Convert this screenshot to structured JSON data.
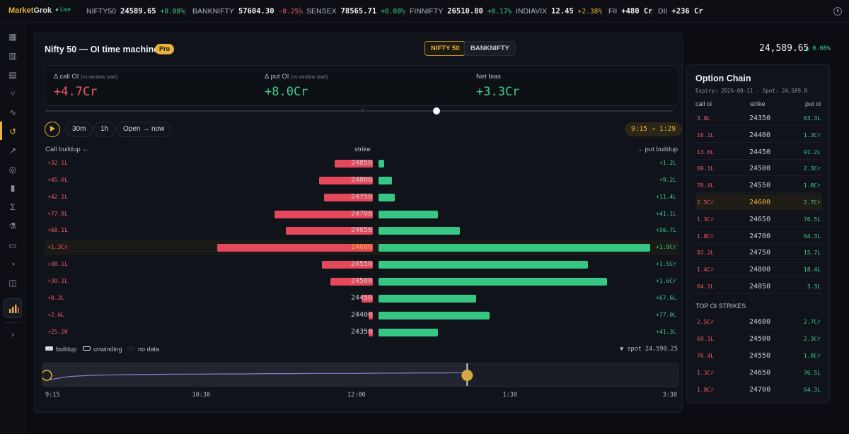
{
  "brand": {
    "name_a": "Market",
    "name_b": "Grok",
    "live": "● Live"
  },
  "ticker": [
    {
      "name": "NIFTY50",
      "value": "24589.65",
      "change": "+0.08%",
      "dir": "up"
    },
    {
      "name": "BANKNIFTY",
      "value": "57604.30",
      "change": "-0.25%",
      "dir": "down"
    },
    {
      "name": "SENSEX",
      "value": "78565.71",
      "change": "+0.08%",
      "dir": "up"
    },
    {
      "name": "FINNIFTY",
      "value": "26510.80",
      "change": "+0.17%",
      "dir": "up"
    },
    {
      "name": "INDIAVIX",
      "value": "12.45",
      "change": "+2.38%",
      "dir": "warn"
    },
    {
      "name": "FII",
      "value": "+480 Cr",
      "change": "",
      "dir": "up"
    },
    {
      "name": "DII",
      "value": "+236 Cr",
      "change": "",
      "dir": "up"
    }
  ],
  "header": {
    "title": "Nifty 50 — OI time machine",
    "badge": "Pro",
    "index_tabs": [
      "NIFTY 50",
      "BANKNIFTY"
    ],
    "price": "24,589.65",
    "price_change": "▲ 0.08%"
  },
  "stats": [
    {
      "label": "Δ call OI",
      "hint": "(vs window start)",
      "value": "+4.7Cr",
      "dir": "down"
    },
    {
      "label": "Δ put OI",
      "hint": "(vs window start)",
      "value": "+8.0Cr",
      "dir": "up"
    },
    {
      "label": "Net bias",
      "hint": "",
      "value": "+3.3Cr",
      "dir": "up"
    }
  ],
  "controls": {
    "windows": [
      "30m",
      "1h",
      "Open → now"
    ],
    "time_range": "9:15 → 1:29",
    "scrub_position": 0.62
  },
  "columns": {
    "left": "Call buildup ←",
    "mid": "strike",
    "right": "→ put buildup"
  },
  "oi_rows": [
    {
      "strike": "24850",
      "call": "+32.1L",
      "put": "+1.2L",
      "call_frac": 0.17,
      "put_frac": 0.02
    },
    {
      "strike": "24800",
      "call": "+45.0L",
      "put": "+9.2L",
      "call_frac": 0.24,
      "put_frac": 0.05
    },
    {
      "strike": "24750",
      "call": "+42.1L",
      "put": "+11.4L",
      "call_frac": 0.22,
      "put_frac": 0.06
    },
    {
      "strike": "24700",
      "call": "+77.8L",
      "put": "+41.1L",
      "call_frac": 0.44,
      "put_frac": 0.22
    },
    {
      "strike": "24650",
      "call": "+68.1L",
      "put": "+56.7L",
      "call_frac": 0.39,
      "put_frac": 0.3
    },
    {
      "strike": "24600",
      "call": "+1.3Cr",
      "put": "+1.9Cr",
      "call_frac": 0.7,
      "put_frac": 1.0,
      "highlight": true
    },
    {
      "strike": "24550",
      "call": "+38.1L",
      "put": "+1.5Cr",
      "call_frac": 0.23,
      "put_frac": 0.77
    },
    {
      "strike": "24500",
      "call": "+30.1L",
      "put": "+1.6Cr",
      "call_frac": 0.19,
      "put_frac": 0.84
    },
    {
      "strike": "24450",
      "call": "+8.3L",
      "put": "+67.6L",
      "call_frac": 0.05,
      "put_frac": 0.36
    },
    {
      "strike": "24400",
      "call": "+2.6L",
      "put": "+77.0L",
      "call_frac": 0.02,
      "put_frac": 0.41
    },
    {
      "strike": "24350",
      "call": "+25.2K",
      "put": "+41.3L",
      "call_frac": 0.02,
      "put_frac": 0.22
    }
  ],
  "legend": {
    "buildup": "buildup",
    "unwinding": "unwinding",
    "nodata": "no data",
    "spot": "▼ spot 24,590.25"
  },
  "timeline": {
    "labels": [
      "9:15",
      "10:30",
      "12:00",
      "1:30",
      "3:30"
    ],
    "progress": 0.667,
    "series": [
      0.3,
      0.45,
      0.5,
      0.52,
      0.53,
      0.54,
      0.55,
      0.55,
      0.56,
      0.56,
      0.57,
      0.57,
      0.58,
      0.58,
      0.58,
      0.59,
      0.59,
      0.6,
      0.6,
      0.61
    ]
  },
  "chain": {
    "title": "Option Chain",
    "subtitle": "Expiry: 2026-08-11 · Spot: 24,589.8",
    "headers": [
      "call oi",
      "strike",
      "put oi"
    ],
    "rows": [
      {
        "call": "3.8L",
        "strike": "24350",
        "put": "63.3L"
      },
      {
        "call": "16.1L",
        "strike": "24400",
        "put": "1.3Cr"
      },
      {
        "call": "13.6L",
        "strike": "24450",
        "put": "91.2L"
      },
      {
        "call": "69.1L",
        "strike": "24500",
        "put": "2.3Cr"
      },
      {
        "call": "76.4L",
        "strike": "24550",
        "put": "1.8Cr"
      },
      {
        "call": "2.5Cr",
        "strike": "24600",
        "put": "2.7Cr",
        "highlight": true
      },
      {
        "call": "1.3Cr",
        "strike": "24650",
        "put": "76.5L"
      },
      {
        "call": "1.8Cr",
        "strike": "24700",
        "put": "64.3L"
      },
      {
        "call": "82.2L",
        "strike": "24750",
        "put": "15.7L"
      },
      {
        "call": "1.4Cr",
        "strike": "24800",
        "put": "18.4L"
      },
      {
        "call": "64.1L",
        "strike": "24850",
        "put": "3.3L"
      }
    ],
    "top_title": "TOP OI STRIKES",
    "top_rows": [
      {
        "call": "2.5Cr",
        "strike": "24600",
        "put": "2.7Cr"
      },
      {
        "call": "69.1L",
        "strike": "24500",
        "put": "2.3Cr"
      },
      {
        "call": "76.4L",
        "strike": "24550",
        "put": "1.8Cr"
      },
      {
        "call": "1.3Cr",
        "strike": "24650",
        "put": "76.5L"
      },
      {
        "call": "1.8Cr",
        "strike": "24700",
        "put": "64.3L"
      }
    ]
  },
  "sidebar_icons": [
    "grid-icon",
    "bar-chart-icon",
    "table-icon",
    "branch-icon",
    "pulse-icon",
    "history-icon",
    "trend-icon",
    "broadcast-icon",
    "columns-icon",
    "sigma-icon",
    "flask-icon",
    "book-icon",
    "bell-icon",
    "scan-icon"
  ],
  "sidebar_active": 5,
  "colors": {
    "accent": "#e8b33a",
    "call": "#e5485a",
    "put": "#37c784"
  }
}
